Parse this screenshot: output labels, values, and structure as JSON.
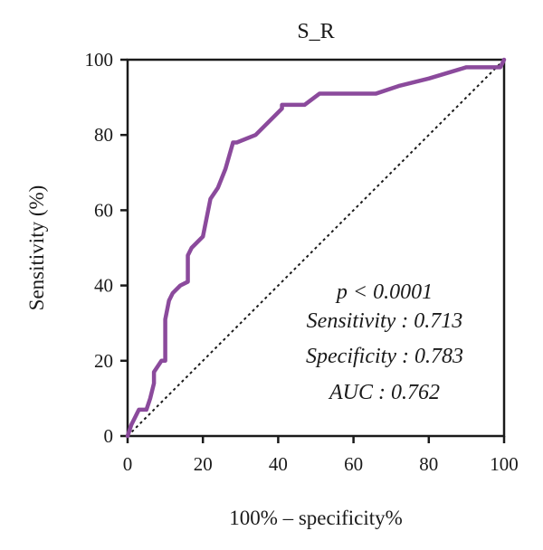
{
  "chart_data": {
    "type": "line",
    "title": "S_R",
    "xlabel": "100% – specificity%",
    "ylabel": "Sensitivity (%)",
    "xlim": [
      0,
      100
    ],
    "ylim": [
      0,
      100
    ],
    "xticks": [
      0,
      20,
      40,
      60,
      80,
      100
    ],
    "yticks": [
      0,
      20,
      40,
      60,
      80,
      100
    ],
    "grid": false,
    "series": [
      {
        "x": [
          0,
          1,
          2,
          3,
          5,
          6,
          7,
          7,
          9,
          10,
          10,
          11,
          12,
          14,
          16,
          16,
          17,
          20,
          22,
          24,
          26,
          28,
          29,
          34,
          41,
          41,
          47,
          51,
          53,
          58,
          66,
          72,
          80,
          90,
          99,
          100
        ],
        "y": [
          0,
          3,
          5,
          7,
          7,
          10,
          14,
          17,
          20,
          20,
          31,
          36,
          38,
          40,
          41,
          48,
          50,
          53,
          63,
          66,
          71,
          78,
          78,
          80,
          87,
          88,
          88,
          91,
          91,
          91,
          91,
          93,
          95,
          98,
          98,
          100
        ],
        "color": "#8b4a9c"
      },
      {
        "x": [
          0,
          100
        ],
        "y": [
          0,
          100
        ],
        "color": "#1a1a1a",
        "style": "dotted"
      }
    ],
    "annotations": [
      "p < 0.0001",
      "Sensitivity : 0.713",
      "Specificity : 0.783",
      "AUC : 0.762"
    ]
  }
}
